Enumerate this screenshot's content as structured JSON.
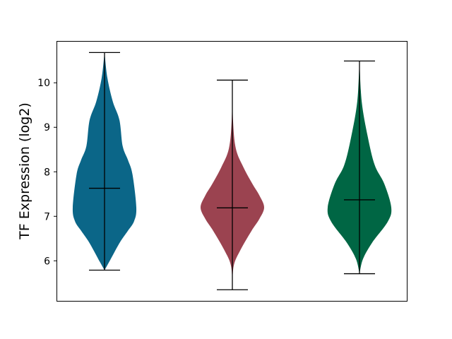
{
  "chart_data": {
    "type": "violin",
    "title": "",
    "xlabel": "",
    "ylabel": "TF Expression (log2)",
    "ylim": [
      5.1,
      10.94
    ],
    "yticks": [
      6,
      7,
      8,
      9,
      10
    ],
    "grid": false,
    "legend": "none",
    "series": [
      {
        "color": "#0b6688",
        "max": 10.68,
        "min": 5.79,
        "median": 7.63,
        "density": [
          [
            10.68,
            0
          ],
          [
            10.11,
            0.09
          ],
          [
            9.58,
            0.26
          ],
          [
            9.16,
            0.47
          ],
          [
            8.58,
            0.57
          ],
          [
            8.26,
            0.74
          ],
          [
            7.94,
            0.88
          ],
          [
            7.2,
            1.0
          ],
          [
            6.89,
            0.93
          ],
          [
            6.67,
            0.73
          ],
          [
            6.41,
            0.48
          ],
          [
            5.98,
            0.15
          ],
          [
            5.79,
            0
          ]
        ]
      },
      {
        "color": "#9b4350",
        "max": 10.06,
        "min": 5.35,
        "median": 7.19,
        "density": [
          [
            10.06,
            0
          ],
          [
            9.16,
            0.02
          ],
          [
            8.52,
            0.11
          ],
          [
            8.1,
            0.35
          ],
          [
            7.73,
            0.63
          ],
          [
            7.47,
            0.85
          ],
          [
            7.2,
            1.0
          ],
          [
            6.94,
            0.85
          ],
          [
            6.67,
            0.6
          ],
          [
            6.25,
            0.26
          ],
          [
            5.88,
            0.04
          ],
          [
            5.35,
            0
          ]
        ]
      },
      {
        "color": "#006644",
        "max": 10.49,
        "min": 5.71,
        "median": 7.37,
        "density": [
          [
            10.49,
            0
          ],
          [
            9.58,
            0.07
          ],
          [
            8.79,
            0.26
          ],
          [
            8.15,
            0.48
          ],
          [
            7.73,
            0.78
          ],
          [
            7.2,
            1.0
          ],
          [
            6.88,
            0.89
          ],
          [
            6.41,
            0.4
          ],
          [
            6.04,
            0.11
          ],
          [
            5.71,
            0
          ]
        ]
      }
    ]
  }
}
